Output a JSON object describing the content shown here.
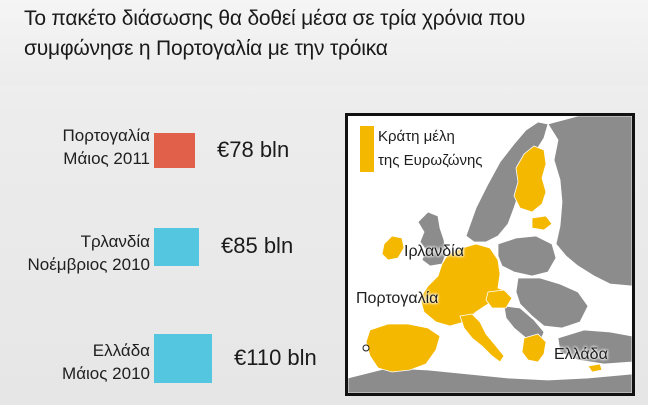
{
  "header": {
    "title_line1": "Το πακέτο διάσωσης θα δοθεί μέσα σε τρία χρόνια που",
    "title_line2": "συμφώνησε η Πορτογαλία με την τρόικα"
  },
  "chart_data": {
    "type": "bar",
    "orientation": "horizontal",
    "categories": [
      "Πορτογαλία Μάιος 2011",
      "Τρλανδία Νοέμβριος 2010",
      "Ελλάδα Μάιος 2010"
    ],
    "values": [
      78,
      85,
      110
    ],
    "unit": "bln €",
    "rows": [
      {
        "country": "Πορτογαλία",
        "date": "Μάιος 2011",
        "value": 78,
        "label": "€78 bln",
        "color": "#e0604a"
      },
      {
        "country": "Τρλανδία",
        "date": "Νοέμβριος 2010",
        "value": 85,
        "label": "€85 bln",
        "color": "#55c6e0"
      },
      {
        "country": "Ελλάδα",
        "date": "Μάιος 2010",
        "value": 110,
        "label": "€110 bln",
        "color": "#55c6e0"
      }
    ]
  },
  "map": {
    "legend_line1": "Κράτη μέλη",
    "legend_line2": "της Ευρωζώνης",
    "label_ireland": "Ιρλανδία",
    "label_portugal": "Πορτογαλία",
    "label_greece": "Ελλάδα",
    "colors": {
      "eurozone": "#f5b800",
      "other": "#8c8c8c",
      "sea": "#ffffff",
      "border": "#ffffff"
    }
  }
}
